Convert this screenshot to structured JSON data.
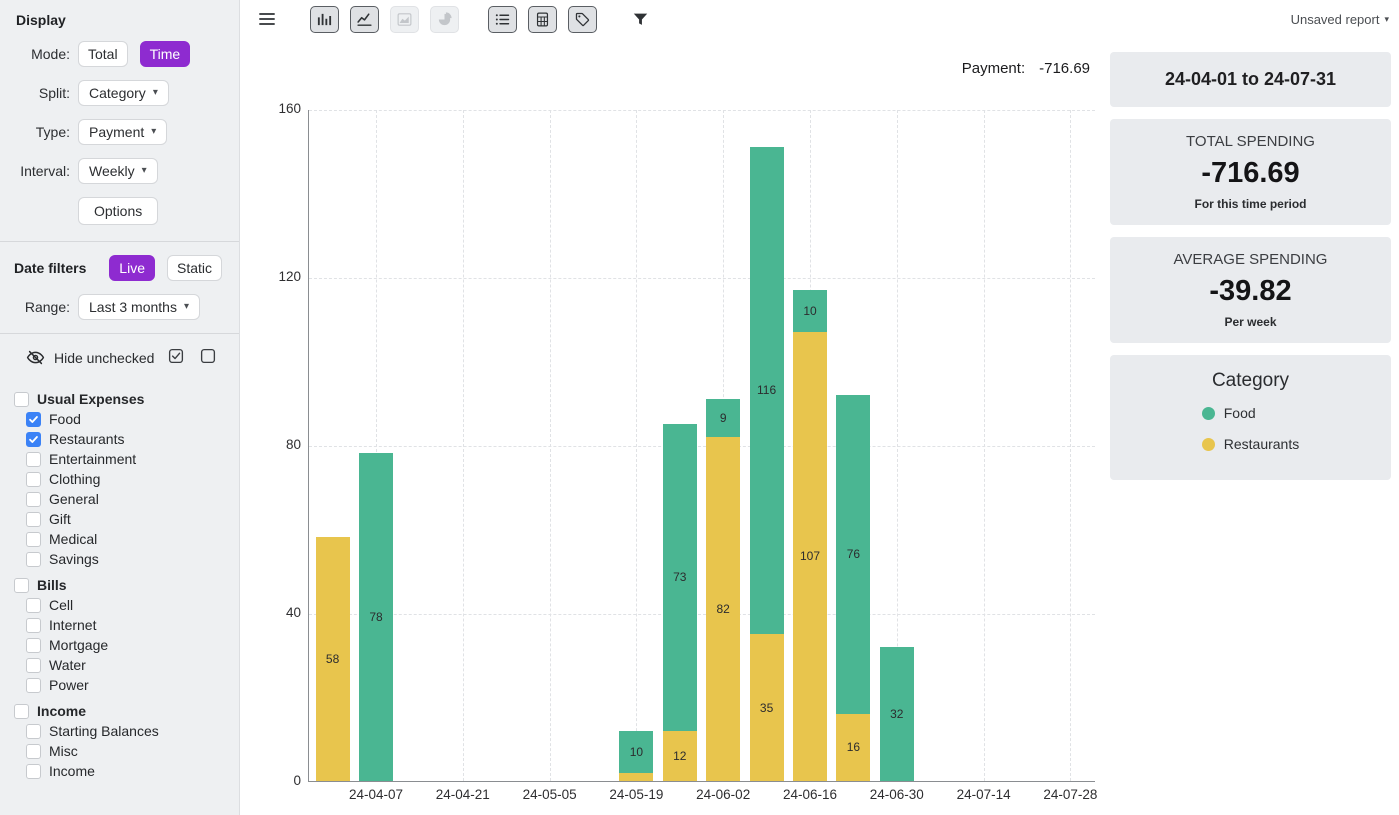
{
  "colors": {
    "purple": "#8e2bd0",
    "blue": "#3b82f6",
    "green": "#4ab692",
    "yellow": "#e8c54d"
  },
  "glyphs": {
    "caret": "▾"
  },
  "toolbar": {
    "icons": [
      {
        "name": "menu-icon",
        "state": "plain",
        "section": 0
      },
      {
        "name": "bar-chart-icon",
        "state": "active",
        "section": 1
      },
      {
        "name": "line-chart-icon",
        "state": "active",
        "section": 1
      },
      {
        "name": "area-chart-icon",
        "state": "disabled",
        "section": 1
      },
      {
        "name": "pie-chart-icon",
        "state": "disabled",
        "section": 1
      },
      {
        "name": "list-icon",
        "state": "active",
        "section": 2
      },
      {
        "name": "calculator-icon",
        "state": "active",
        "section": 2
      },
      {
        "name": "tag-icon",
        "state": "active",
        "section": 2
      },
      {
        "name": "filter-icon",
        "state": "plain",
        "section": 3
      }
    ],
    "report_label": "Unsaved report"
  },
  "sidebar": {
    "display": {
      "title": "Display",
      "mode_label": "Mode:",
      "mode_options": [
        {
          "label": "Total",
          "active": false
        },
        {
          "label": "Time",
          "active": true
        }
      ],
      "split_label": "Split:",
      "split_value": "Category",
      "type_label": "Type:",
      "type_value": "Payment",
      "interval_label": "Interval:",
      "interval_value": "Weekly",
      "options_button": "Options"
    },
    "date_filters": {
      "title": "Date filters",
      "options": [
        {
          "label": "Live",
          "active": true
        },
        {
          "label": "Static",
          "active": false
        }
      ],
      "range_label": "Range:",
      "range_value": "Last 3 months"
    },
    "hide_unchecked": {
      "label": "Hide unchecked",
      "icons": [
        {
          "name": "eye-off-icon"
        },
        {
          "name": "check-all-icon"
        },
        {
          "name": "uncheck-all-icon"
        }
      ]
    },
    "groups": [
      {
        "label": "Usual Expenses",
        "checked": false,
        "items": [
          {
            "label": "Food",
            "checked": true
          },
          {
            "label": "Restaurants",
            "checked": true
          },
          {
            "label": "Entertainment",
            "checked": false
          },
          {
            "label": "Clothing",
            "checked": false
          },
          {
            "label": "General",
            "checked": false
          },
          {
            "label": "Gift",
            "checked": false
          },
          {
            "label": "Medical",
            "checked": false
          },
          {
            "label": "Savings",
            "checked": false
          }
        ]
      },
      {
        "label": "Bills",
        "checked": false,
        "items": [
          {
            "label": "Cell",
            "checked": false
          },
          {
            "label": "Internet",
            "checked": false
          },
          {
            "label": "Mortgage",
            "checked": false
          },
          {
            "label": "Water",
            "checked": false
          },
          {
            "label": "Power",
            "checked": false
          }
        ]
      },
      {
        "label": "Income",
        "checked": false,
        "items": [
          {
            "label": "Starting Balances",
            "checked": false
          },
          {
            "label": "Misc",
            "checked": false
          },
          {
            "label": "Income",
            "checked": false
          }
        ]
      }
    ]
  },
  "summary": {
    "payment_label": "Payment:",
    "payment_value": "-716.69"
  },
  "panel": {
    "date_range": "24-04-01 to 24-07-31",
    "total": {
      "title": "TOTAL SPENDING",
      "value": "-716.69",
      "subtitle": "For this time period"
    },
    "average": {
      "title": "AVERAGE SPENDING",
      "value": "-39.82",
      "subtitle": "Per week"
    },
    "legend": {
      "title": "Category",
      "items": [
        {
          "label": "Food",
          "color": "#4ab692"
        },
        {
          "label": "Restaurants",
          "color": "#e8c54d"
        }
      ]
    }
  },
  "chart_data": {
    "type": "bar",
    "stacked": true,
    "title": "",
    "xlabel": "",
    "ylabel": "",
    "ylim": [
      0,
      160
    ],
    "y_ticks": [
      0,
      40,
      80,
      120,
      160
    ],
    "interval": "Weekly",
    "x_tick_labels": [
      "24-04-07",
      "24-04-21",
      "24-05-05",
      "24-05-19",
      "24-06-02",
      "24-06-16",
      "24-06-30",
      "24-07-14",
      "24-07-28"
    ],
    "x_tick_week_indices": [
      1,
      3,
      5,
      7,
      9,
      11,
      13,
      15,
      17
    ],
    "total_weeks": 18,
    "grid": true,
    "series": [
      {
        "name": "Restaurants",
        "color": "#e8c54d"
      },
      {
        "name": "Food",
        "color": "#4ab692"
      }
    ],
    "bars": [
      {
        "week": 0,
        "segments": [
          {
            "series": "Restaurants",
            "value": 58
          }
        ]
      },
      {
        "week": 1,
        "segments": [
          {
            "series": "Food",
            "value": 78
          }
        ]
      },
      {
        "week": 7,
        "segments": [
          {
            "series": "Restaurants",
            "value": 2
          },
          {
            "series": "Food",
            "value": 10
          }
        ]
      },
      {
        "week": 8,
        "segments": [
          {
            "series": "Restaurants",
            "value": 12
          },
          {
            "series": "Food",
            "value": 73
          }
        ]
      },
      {
        "week": 9,
        "segments": [
          {
            "series": "Restaurants",
            "value": 82
          },
          {
            "series": "Food",
            "value": 9
          }
        ]
      },
      {
        "week": 10,
        "segments": [
          {
            "series": "Restaurants",
            "value": 35
          },
          {
            "series": "Food",
            "value": 116
          }
        ]
      },
      {
        "week": 11,
        "segments": [
          {
            "series": "Restaurants",
            "value": 107
          },
          {
            "series": "Food",
            "value": 10
          }
        ]
      },
      {
        "week": 12,
        "segments": [
          {
            "series": "Restaurants",
            "value": 16
          },
          {
            "series": "Food",
            "value": 76
          }
        ]
      },
      {
        "week": 13,
        "segments": [
          {
            "series": "Food",
            "value": 32
          }
        ]
      }
    ]
  }
}
